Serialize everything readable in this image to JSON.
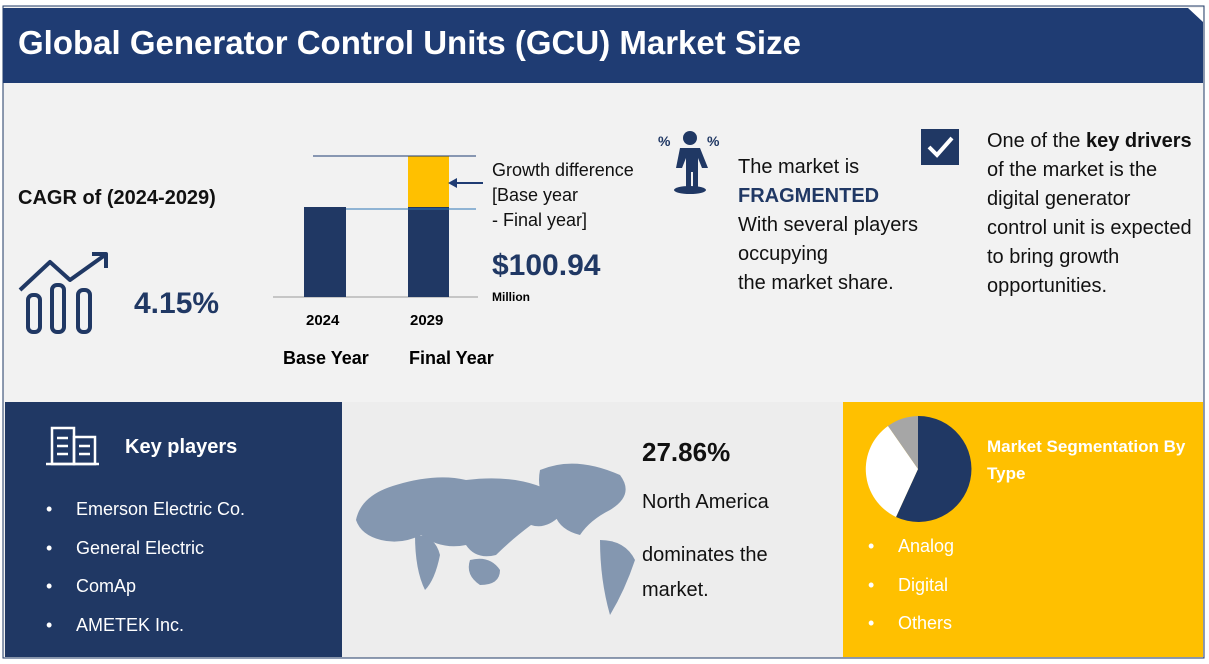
{
  "header": {
    "title": "Global Generator Control Units (GCU) Market Size"
  },
  "cagr": {
    "label": "CAGR of (2024-2029)",
    "value": "4.15%"
  },
  "growth": {
    "years": [
      "2024",
      "2029"
    ],
    "year_labels": [
      "Base Year",
      "Final Year"
    ],
    "note": [
      "Growth difference",
      "[Base year",
      "- Final year]"
    ],
    "amount": "$100.94",
    "unit": "Million"
  },
  "market": {
    "intro": "The market is",
    "status": "FRAGMENTED",
    "lines": [
      "With several players",
      "occupying",
      "the market share."
    ]
  },
  "drivers": {
    "lead": "One of the",
    "highlight": "key drivers",
    "text": "of the market is the digital generator control unit is expected to bring growth opportunities."
  },
  "key_players": {
    "title": "Key players",
    "items": [
      "Emerson Electric Co.",
      "General Electric",
      "ComAp",
      "AMETEK Inc."
    ]
  },
  "region": {
    "share": "27.86%",
    "name": "North America",
    "text": [
      "dominates the",
      "market."
    ]
  },
  "segmentation": {
    "title": "Market Segmentation By Type",
    "items": [
      "Analog",
      "Digital",
      "Others"
    ]
  }
}
